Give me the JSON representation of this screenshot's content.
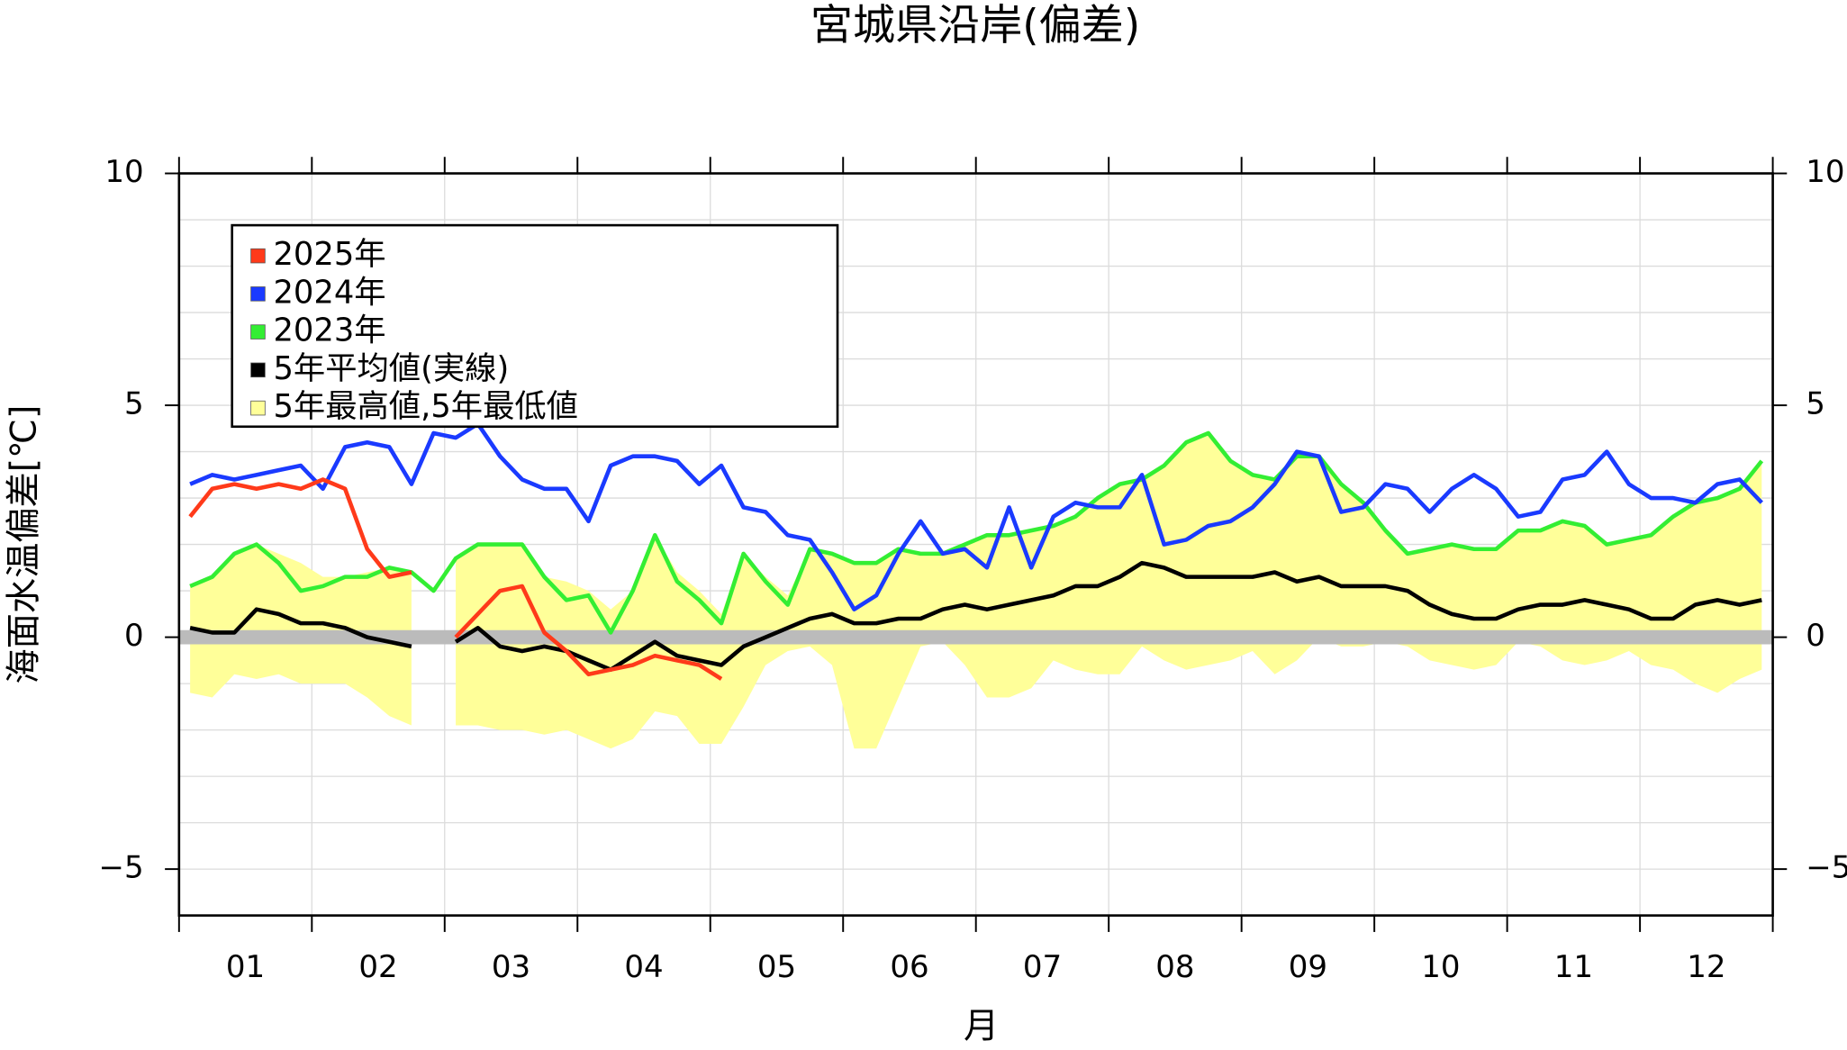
{
  "chart_data": {
    "type": "line",
    "title": "宮城県沿岸(偏差)",
    "xlabel": "月",
    "ylabel": "海面水温偏差[℃]",
    "categories": [
      null,
      null,
      "01",
      null,
      null,
      null,
      null,
      null,
      "02",
      null,
      null,
      null,
      null,
      null,
      "03",
      null,
      null,
      null,
      null,
      null,
      "04",
      null,
      null,
      null,
      null,
      null,
      "05",
      null,
      null,
      null,
      null,
      null,
      "06",
      null,
      null,
      null,
      null,
      null,
      "07",
      null,
      null,
      null,
      null,
      null,
      "08",
      null,
      null,
      null,
      null,
      null,
      "09",
      null,
      null,
      null,
      null,
      null,
      "10",
      null,
      null,
      null,
      null,
      null,
      "11",
      null,
      null,
      null,
      null,
      null,
      "12",
      null,
      null,
      null
    ],
    "series": [
      {
        "name": "2025年",
        "color": "#ff3a1a",
        "values": [
          2.6,
          3.2,
          3.3,
          3.2,
          3.3,
          3.2,
          3.4,
          3.2,
          1.9,
          1.3,
          1.4,
          null,
          0.0,
          0.5,
          1.0,
          1.1,
          0.1,
          -0.3,
          -0.8,
          -0.7,
          -0.6,
          -0.4,
          -0.5,
          -0.6,
          -0.9,
          null,
          null,
          null,
          null,
          null,
          null,
          null,
          null,
          null,
          null,
          null,
          null,
          null,
          null,
          null,
          null,
          null,
          null,
          null,
          null,
          null,
          null,
          null,
          null,
          null,
          null,
          null,
          null,
          null,
          null,
          null,
          null,
          null,
          null,
          null,
          null,
          null,
          null,
          null,
          null,
          null,
          null,
          null,
          null,
          null,
          null,
          null
        ]
      },
      {
        "name": "2024年",
        "color": "#1a3aff",
        "values": [
          3.3,
          3.5,
          3.4,
          3.5,
          3.6,
          3.7,
          3.2,
          4.1,
          4.2,
          4.1,
          3.3,
          4.4,
          4.3,
          4.6,
          3.9,
          3.4,
          3.2,
          3.2,
          2.5,
          3.7,
          3.9,
          3.9,
          3.8,
          3.3,
          3.7,
          2.8,
          2.7,
          2.2,
          2.1,
          1.4,
          0.6,
          0.9,
          1.8,
          2.5,
          1.8,
          1.9,
          1.5,
          2.8,
          1.5,
          2.6,
          2.9,
          2.8,
          2.8,
          3.5,
          2.0,
          2.1,
          2.4,
          2.5,
          2.8,
          3.3,
          4.0,
          3.9,
          2.7,
          2.8,
          3.3,
          3.2,
          2.7,
          3.2,
          3.5,
          3.2,
          2.6,
          2.7,
          3.4,
          3.5,
          4.0,
          3.3,
          3.0,
          3.0,
          2.9,
          3.3,
          3.4,
          2.9
        ]
      },
      {
        "name": "2023年",
        "color": "#33ee33",
        "values": [
          1.1,
          1.3,
          1.8,
          2.0,
          1.6,
          1.0,
          1.1,
          1.3,
          1.3,
          1.5,
          1.4,
          1.0,
          1.7,
          2.0,
          2.0,
          2.0,
          1.3,
          0.8,
          0.9,
          0.1,
          1.0,
          2.2,
          1.2,
          0.8,
          0.3,
          1.8,
          1.2,
          0.7,
          1.9,
          1.8,
          1.6,
          1.6,
          1.9,
          1.8,
          1.8,
          2.0,
          2.2,
          2.2,
          2.3,
          2.4,
          2.6,
          3.0,
          3.3,
          3.4,
          3.7,
          4.2,
          4.4,
          3.8,
          3.5,
          3.4,
          3.9,
          3.9,
          3.3,
          2.9,
          2.3,
          1.8,
          1.9,
          2.0,
          1.9,
          1.9,
          2.3,
          2.3,
          2.5,
          2.4,
          2.0,
          2.1,
          2.2,
          2.6,
          2.9,
          3.0,
          3.2,
          3.8
        ]
      },
      {
        "name": "5年平均値(実線)",
        "color": "#000000",
        "values": [
          0.2,
          0.1,
          0.1,
          0.6,
          0.5,
          0.3,
          0.3,
          0.2,
          0.0,
          -0.1,
          -0.2,
          null,
          -0.1,
          0.2,
          -0.2,
          -0.3,
          -0.2,
          -0.3,
          -0.5,
          -0.7,
          -0.4,
          -0.1,
          -0.4,
          -0.5,
          -0.6,
          -0.2,
          0.0,
          0.2,
          0.4,
          0.5,
          0.3,
          0.3,
          0.4,
          0.4,
          0.6,
          0.7,
          0.6,
          0.7,
          0.8,
          0.9,
          1.1,
          1.1,
          1.3,
          1.6,
          1.5,
          1.3,
          1.3,
          1.3,
          1.3,
          1.4,
          1.2,
          1.3,
          1.1,
          1.1,
          1.1,
          1.0,
          0.7,
          0.5,
          0.4,
          0.4,
          0.6,
          0.7,
          0.7,
          0.8,
          0.7,
          0.6,
          0.4,
          0.4,
          0.7,
          0.8,
          0.7,
          0.8
        ]
      }
    ],
    "band": {
      "name": "5年最高値,5年最低値",
      "color": "#ffff99",
      "max": [
        1.1,
        1.3,
        1.8,
        2.0,
        1.8,
        1.6,
        1.3,
        1.3,
        1.4,
        1.5,
        1.4,
        null,
        1.7,
        2.0,
        2.0,
        2.0,
        1.3,
        1.2,
        1.0,
        0.6,
        1.0,
        2.2,
        1.4,
        1.0,
        0.5,
        1.8,
        1.3,
        0.9,
        1.9,
        1.8,
        1.6,
        1.6,
        1.9,
        1.8,
        1.8,
        2.0,
        2.2,
        2.2,
        2.3,
        2.4,
        2.6,
        3.0,
        3.3,
        3.4,
        3.7,
        4.2,
        4.4,
        3.8,
        3.5,
        3.4,
        3.9,
        3.9,
        3.3,
        2.9,
        2.3,
        1.8,
        1.9,
        2.0,
        1.9,
        1.9,
        2.3,
        2.3,
        2.5,
        2.4,
        2.0,
        2.1,
        2.2,
        2.6,
        2.9,
        3.0,
        3.2,
        3.8
      ],
      "min": [
        -1.2,
        -1.3,
        -0.8,
        -0.9,
        -0.8,
        -1.0,
        -1.0,
        -1.0,
        -1.3,
        -1.7,
        -1.9,
        null,
        -1.9,
        -1.9,
        -2.0,
        -2.0,
        -2.1,
        -2.0,
        -2.2,
        -2.4,
        -2.2,
        -1.6,
        -1.7,
        -2.3,
        -2.3,
        -1.5,
        -0.6,
        -0.3,
        -0.2,
        -0.6,
        -2.4,
        -2.4,
        -1.3,
        -0.2,
        -0.1,
        -0.6,
        -1.3,
        -1.3,
        -1.1,
        -0.5,
        -0.7,
        -0.8,
        -0.8,
        -0.2,
        -0.5,
        -0.7,
        -0.6,
        -0.5,
        -0.3,
        -0.8,
        -0.5,
        0.0,
        -0.2,
        -0.2,
        -0.1,
        -0.2,
        -0.5,
        -0.6,
        -0.7,
        -0.6,
        -0.1,
        -0.2,
        -0.5,
        -0.6,
        -0.5,
        -0.3,
        -0.6,
        -0.7,
        -1.0,
        -1.2,
        -0.9,
        -0.7
      ]
    },
    "reference_line": {
      "value": 0,
      "color": "#bbbbbb"
    },
    "ylim": [
      -6,
      10
    ],
    "yticks": [
      {
        "value": -5,
        "label": "−5"
      },
      0,
      5,
      10
    ],
    "yminor": [
      -6,
      -5,
      -4,
      -3,
      -2,
      -1,
      0,
      1,
      2,
      3,
      4,
      5,
      6,
      7,
      8,
      9,
      10
    ],
    "grid": true,
    "legend": "upper-left"
  }
}
